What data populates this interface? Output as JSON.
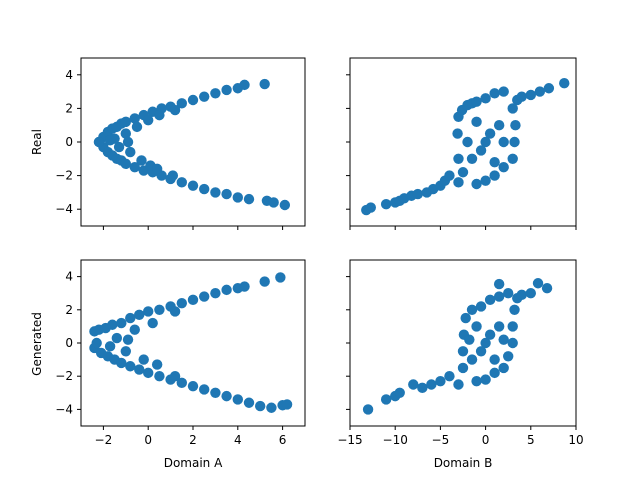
{
  "figure": {
    "background": "#ffffff",
    "point_color": "#1f77b4"
  },
  "chart_data": [
    {
      "type": "scatter",
      "id": "real-a",
      "ylabel": "Real",
      "xlabel": "",
      "xlim": [
        -3,
        7
      ],
      "ylim": [
        -5,
        5
      ],
      "xticks": [
        -2,
        0,
        2,
        4,
        6
      ],
      "yticks": [
        -4,
        -2,
        0,
        2,
        4
      ],
      "show_xticklabels": false,
      "show_yticklabels": true,
      "color": "#1f77b4",
      "points": [
        [
          -2.0,
          0.3
        ],
        [
          -1.8,
          0.6
        ],
        [
          -1.6,
          0.8
        ],
        [
          -1.4,
          0.9
        ],
        [
          -1.2,
          1.1
        ],
        [
          -1.0,
          1.2
        ],
        [
          -0.6,
          1.4
        ],
        [
          -0.2,
          1.6
        ],
        [
          0.2,
          1.8
        ],
        [
          0.6,
          2.0
        ],
        [
          1.0,
          2.1
        ],
        [
          1.5,
          2.3
        ],
        [
          2.0,
          2.5
        ],
        [
          2.5,
          2.7
        ],
        [
          3.0,
          2.9
        ],
        [
          3.5,
          3.1
        ],
        [
          4.0,
          3.2
        ],
        [
          4.3,
          3.4
        ],
        [
          5.2,
          3.45
        ],
        [
          -2.0,
          -0.3
        ],
        [
          -1.8,
          -0.6
        ],
        [
          -1.6,
          -0.8
        ],
        [
          -1.4,
          -1.0
        ],
        [
          -1.2,
          -1.1
        ],
        [
          -1.0,
          -1.3
        ],
        [
          -0.6,
          -1.5
        ],
        [
          -0.2,
          -1.7
        ],
        [
          0.2,
          -1.8
        ],
        [
          0.6,
          -2.0
        ],
        [
          1.0,
          -2.2
        ],
        [
          1.5,
          -2.4
        ],
        [
          2.0,
          -2.6
        ],
        [
          2.5,
          -2.8
        ],
        [
          3.0,
          -3.0
        ],
        [
          3.5,
          -3.1
        ],
        [
          4.0,
          -3.3
        ],
        [
          4.5,
          -3.4
        ],
        [
          5.3,
          -3.5
        ],
        [
          5.6,
          -3.6
        ],
        [
          6.1,
          -3.75
        ],
        [
          -2.2,
          0.0
        ],
        [
          -1.5,
          0.2
        ],
        [
          -1.0,
          0.5
        ],
        [
          -0.8,
          -0.6
        ],
        [
          -1.3,
          -0.3
        ],
        [
          -0.5,
          0.9
        ],
        [
          -0.3,
          -1.1
        ],
        [
          0.0,
          1.3
        ],
        [
          0.1,
          -1.4
        ],
        [
          0.5,
          1.6
        ],
        [
          0.4,
          -1.6
        ],
        [
          1.2,
          1.9
        ],
        [
          1.1,
          -2.0
        ],
        [
          -1.7,
          0.1
        ],
        [
          -0.9,
          0.0
        ]
      ]
    },
    {
      "type": "scatter",
      "id": "real-b",
      "ylabel": "",
      "xlabel": "",
      "xlim": [
        -15,
        10
      ],
      "ylim": [
        -5,
        5
      ],
      "xticks": [
        -15,
        -10,
        -5,
        0,
        5,
        10
      ],
      "yticks": [
        -4,
        -2,
        0,
        2,
        4
      ],
      "show_xticklabels": false,
      "show_yticklabels": false,
      "color": "#1f77b4",
      "points": [
        [
          -13.2,
          -4.05
        ],
        [
          -12.7,
          -3.9
        ],
        [
          -11.0,
          -3.7
        ],
        [
          -10.0,
          -3.6
        ],
        [
          -9.5,
          -3.5
        ],
        [
          -9.0,
          -3.35
        ],
        [
          -8.2,
          -3.2
        ],
        [
          -7.5,
          -3.1
        ],
        [
          -6.5,
          -3.0
        ],
        [
          -5.8,
          -2.8
        ],
        [
          -5.0,
          -2.6
        ],
        [
          -4.5,
          -2.3
        ],
        [
          -4.0,
          -2.0
        ],
        [
          -3.0,
          -2.4
        ],
        [
          -2.5,
          -1.8
        ],
        [
          -3.0,
          -1.0
        ],
        [
          -3.1,
          0.5
        ],
        [
          -3.0,
          1.5
        ],
        [
          -2.6,
          1.9
        ],
        [
          -2.0,
          2.2
        ],
        [
          -1.5,
          2.3
        ],
        [
          -1.0,
          -2.5
        ],
        [
          0.0,
          -2.3
        ],
        [
          1.0,
          -2.0
        ],
        [
          2.0,
          -1.5
        ],
        [
          3.0,
          -1.0
        ],
        [
          3.2,
          0.0
        ],
        [
          3.3,
          1.0
        ],
        [
          3.0,
          2.0
        ],
        [
          3.5,
          2.5
        ],
        [
          4.0,
          2.7
        ],
        [
          5.0,
          2.8
        ],
        [
          6.0,
          3.0
        ],
        [
          7.0,
          3.2
        ],
        [
          8.7,
          3.5
        ],
        [
          0.0,
          2.6
        ],
        [
          1.0,
          2.9
        ],
        [
          -1.0,
          2.4
        ],
        [
          2.0,
          3.0
        ],
        [
          0.0,
          0.0
        ],
        [
          -1.5,
          -1.0
        ],
        [
          1.5,
          1.0
        ],
        [
          -1.0,
          1.2
        ],
        [
          1.0,
          -1.2
        ],
        [
          0.5,
          0.5
        ],
        [
          -0.5,
          -0.5
        ],
        [
          -2.0,
          0.0
        ],
        [
          2.0,
          0.0
        ]
      ]
    },
    {
      "type": "scatter",
      "id": "gen-a",
      "ylabel": "Generated",
      "xlabel": "Domain A",
      "xlim": [
        -3,
        7
      ],
      "ylim": [
        -5,
        5
      ],
      "xticks": [
        -2,
        0,
        2,
        4,
        6
      ],
      "yticks": [
        -4,
        -2,
        0,
        2,
        4
      ],
      "show_xticklabels": true,
      "show_yticklabels": true,
      "color": "#1f77b4",
      "points": [
        [
          -2.4,
          0.7
        ],
        [
          -2.2,
          0.8
        ],
        [
          -1.9,
          0.9
        ],
        [
          -1.6,
          1.1
        ],
        [
          -1.2,
          1.2
        ],
        [
          -0.8,
          1.5
        ],
        [
          -0.4,
          1.7
        ],
        [
          0.0,
          1.9
        ],
        [
          0.5,
          2.0
        ],
        [
          1.0,
          2.2
        ],
        [
          1.5,
          2.4
        ],
        [
          2.0,
          2.6
        ],
        [
          2.5,
          2.8
        ],
        [
          3.0,
          3.0
        ],
        [
          3.5,
          3.2
        ],
        [
          4.0,
          3.3
        ],
        [
          4.3,
          3.4
        ],
        [
          5.2,
          3.7
        ],
        [
          5.9,
          3.95
        ],
        [
          -2.4,
          -0.3
        ],
        [
          -2.1,
          -0.6
        ],
        [
          -1.8,
          -0.8
        ],
        [
          -1.5,
          -1.0
        ],
        [
          -1.2,
          -1.2
        ],
        [
          -0.8,
          -1.4
        ],
        [
          -0.4,
          -1.6
        ],
        [
          0.0,
          -1.8
        ],
        [
          0.5,
          -2.0
        ],
        [
          1.0,
          -2.2
        ],
        [
          1.5,
          -2.4
        ],
        [
          2.0,
          -2.6
        ],
        [
          2.5,
          -2.8
        ],
        [
          3.0,
          -3.0
        ],
        [
          3.5,
          -3.2
        ],
        [
          4.0,
          -3.4
        ],
        [
          4.5,
          -3.6
        ],
        [
          5.0,
          -3.8
        ],
        [
          5.5,
          -3.9
        ],
        [
          6.0,
          -3.75
        ],
        [
          6.2,
          -3.7
        ],
        [
          -2.3,
          0.0
        ],
        [
          -1.4,
          0.3
        ],
        [
          -1.0,
          -0.5
        ],
        [
          -0.6,
          0.8
        ],
        [
          -0.2,
          -1.0
        ],
        [
          0.2,
          1.2
        ],
        [
          0.4,
          -1.3
        ],
        [
          -1.7,
          -0.2
        ],
        [
          -0.9,
          0.2
        ],
        [
          1.2,
          1.9
        ],
        [
          1.2,
          -2.0
        ]
      ]
    },
    {
      "type": "scatter",
      "id": "gen-b",
      "ylabel": "",
      "xlabel": "Domain B",
      "xlim": [
        -15,
        10
      ],
      "ylim": [
        -5,
        5
      ],
      "xticks": [
        -15,
        -10,
        -5,
        0,
        5,
        10
      ],
      "yticks": [
        -4,
        -2,
        0,
        2,
        4
      ],
      "show_xticklabels": true,
      "show_yticklabels": false,
      "color": "#1f77b4",
      "points": [
        [
          -13.0,
          -4.0
        ],
        [
          -11.0,
          -3.4
        ],
        [
          -10.0,
          -3.2
        ],
        [
          -9.5,
          -3.0
        ],
        [
          -8.0,
          -2.5
        ],
        [
          -7.0,
          -2.7
        ],
        [
          -6.0,
          -2.5
        ],
        [
          -5.0,
          -2.3
        ],
        [
          -4.0,
          -2.0
        ],
        [
          -3.0,
          -2.5
        ],
        [
          -2.5,
          -1.5
        ],
        [
          -2.5,
          -0.5
        ],
        [
          -2.4,
          0.5
        ],
        [
          -2.2,
          1.5
        ],
        [
          -1.5,
          2.0
        ],
        [
          -0.5,
          2.2
        ],
        [
          -1.0,
          -2.3
        ],
        [
          0.0,
          -2.2
        ],
        [
          1.0,
          -1.8
        ],
        [
          2.0,
          -1.5
        ],
        [
          2.5,
          -0.8
        ],
        [
          3.0,
          0.0
        ],
        [
          3.0,
          1.0
        ],
        [
          3.2,
          2.0
        ],
        [
          3.5,
          2.7
        ],
        [
          4.0,
          2.9
        ],
        [
          5.0,
          3.0
        ],
        [
          5.8,
          3.6
        ],
        [
          6.8,
          3.3
        ],
        [
          1.5,
          3.55
        ],
        [
          0.5,
          2.6
        ],
        [
          1.5,
          2.8
        ],
        [
          2.5,
          3.0
        ],
        [
          0.0,
          0.0
        ],
        [
          -1.5,
          -1.0
        ],
        [
          1.5,
          1.0
        ],
        [
          -1.0,
          1.0
        ],
        [
          1.0,
          -1.0
        ],
        [
          0.5,
          0.5
        ],
        [
          -0.5,
          -0.5
        ],
        [
          -1.8,
          0.2
        ],
        [
          2.0,
          0.2
        ]
      ]
    }
  ]
}
